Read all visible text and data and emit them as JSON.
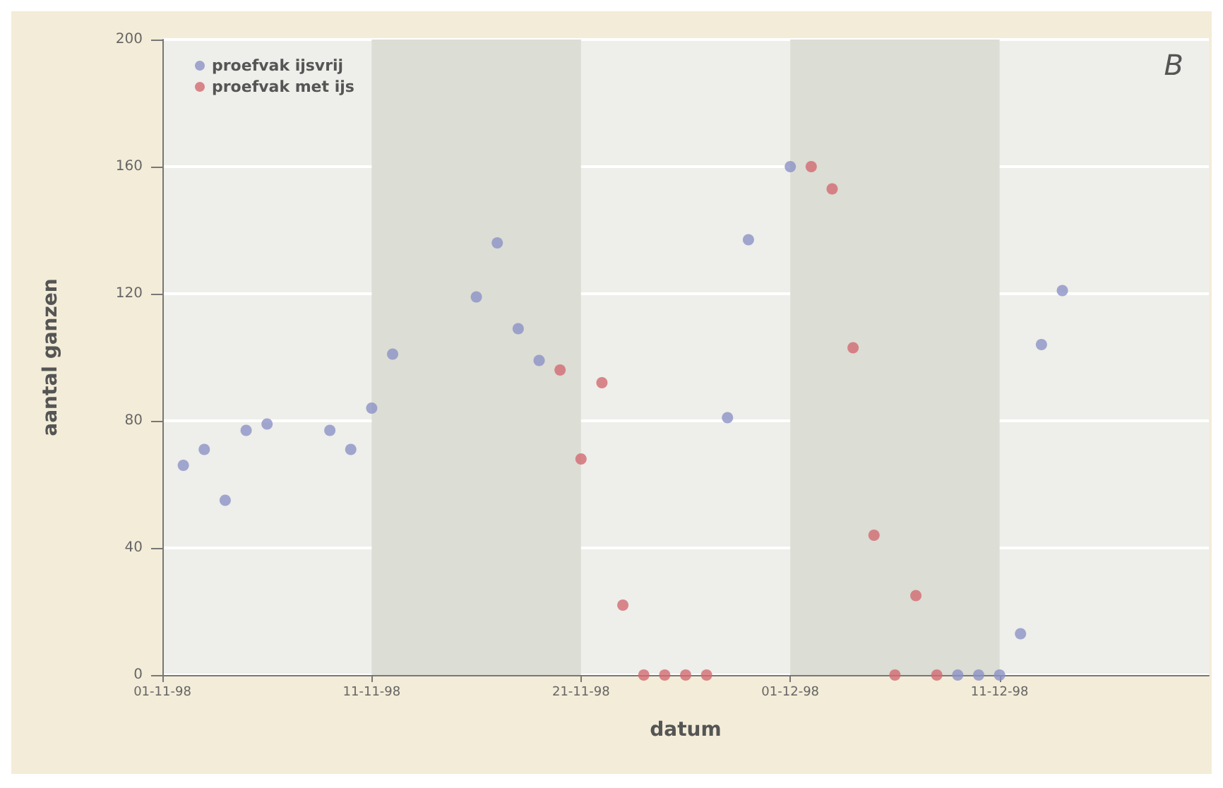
{
  "chart_data": {
    "type": "scatter",
    "xlabel": "datum",
    "ylabel": "aantal ganzen",
    "annotations": [
      "B"
    ],
    "xlim": [
      "1998-11-01",
      "1998-12-21"
    ],
    "xticks": [
      {
        "value": "1998-11-01",
        "label": "01-11-98"
      },
      {
        "value": "1998-11-11",
        "label": "11-11-98"
      },
      {
        "value": "1998-11-21",
        "label": "21-11-98"
      },
      {
        "value": "1998-12-01",
        "label": "01-12-98"
      },
      {
        "value": "1998-12-11",
        "label": "11-12-98"
      }
    ],
    "ylim": [
      0,
      200
    ],
    "yticks": [
      0,
      40,
      80,
      120,
      160,
      200
    ],
    "grid": "y",
    "legend": "top left",
    "marker": "circle",
    "bands": [
      {
        "axis": "x",
        "from": "1998-11-11",
        "to": "1998-11-21",
        "color": "#dcddd4"
      },
      {
        "axis": "x",
        "from": "1998-12-01",
        "to": "1998-12-11",
        "color": "#dcddd4"
      }
    ],
    "series": [
      {
        "name": "proefvak ijsvrij",
        "color": "#8b92c6",
        "x": [
          "1998-11-02",
          "1998-11-03",
          "1998-11-04",
          "1998-11-05",
          "1998-11-06",
          "1998-11-09",
          "1998-11-10",
          "1998-11-11",
          "1998-11-12",
          "1998-11-16",
          "1998-11-17",
          "1998-11-18",
          "1998-11-19",
          "1998-11-28",
          "1998-11-29",
          "1998-12-01",
          "1998-12-09",
          "1998-12-10",
          "1998-12-11",
          "1998-12-12",
          "1998-12-13",
          "1998-12-14"
        ],
        "values": [
          66,
          71,
          55,
          77,
          79,
          77,
          71,
          84,
          101,
          119,
          136,
          109,
          99,
          81,
          137,
          160,
          0,
          0,
          0,
          13,
          104,
          121
        ]
      },
      {
        "name": "proefvak met ijs",
        "color": "#d26a72",
        "x": [
          "1998-11-20",
          "1998-11-21",
          "1998-11-22",
          "1998-11-23",
          "1998-11-24",
          "1998-11-25",
          "1998-11-26",
          "1998-11-27",
          "1998-12-02",
          "1998-12-03",
          "1998-12-04",
          "1998-12-05",
          "1998-12-06",
          "1998-12-07",
          "1998-12-08"
        ],
        "values": [
          96,
          68,
          92,
          22,
          0,
          0,
          0,
          0,
          160,
          153,
          103,
          44,
          0,
          25,
          0
        ]
      }
    ]
  }
}
